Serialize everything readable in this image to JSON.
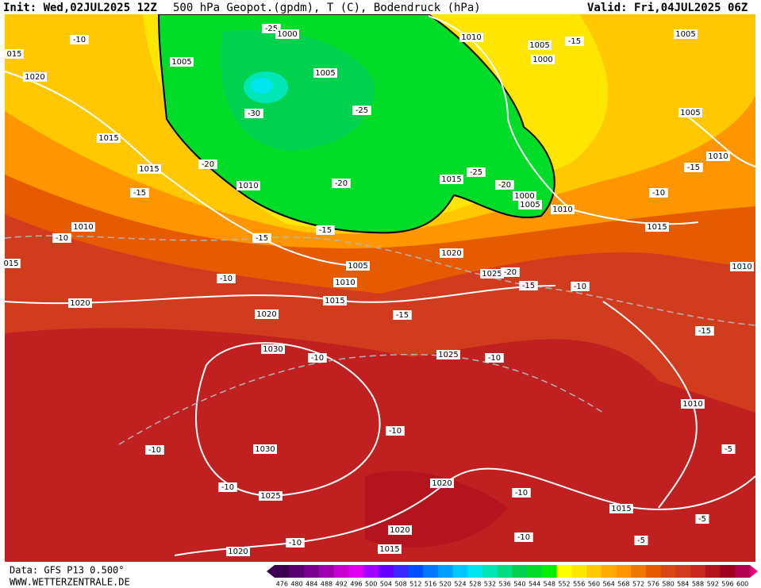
{
  "header": {
    "init": "Init: Wed,02JUL2025 12Z",
    "title": "500 hPa Geopot.(gpdm), T (C), Bodendruck (hPa)",
    "valid": "Valid: Fri,04JUL2025 06Z"
  },
  "footer": {
    "source": "Data: GFS P13 0.500°",
    "site": "WWW.WETTERZENTRALE.DE"
  },
  "legend": {
    "ticks": [
      476,
      480,
      484,
      488,
      492,
      496,
      500,
      504,
      508,
      512,
      516,
      520,
      524,
      528,
      532,
      536,
      540,
      544,
      548,
      552,
      556,
      560,
      564,
      568,
      572,
      576,
      580,
      584,
      588,
      592,
      596,
      600
    ],
    "colors": [
      "#3c0050",
      "#5a0070",
      "#7a0090",
      "#a000b0",
      "#c800d0",
      "#e000f0",
      "#a000ff",
      "#6400ff",
      "#3c28ff",
      "#0050ff",
      "#0078ff",
      "#00a0ff",
      "#00c8ff",
      "#00e6f0",
      "#00e6b4",
      "#00dc82",
      "#00d250",
      "#00dc28",
      "#00f000",
      "#ffff00",
      "#ffe600",
      "#ffc800",
      "#ffaa00",
      "#ff9600",
      "#f07800",
      "#e65a00",
      "#dc4614",
      "#d23c1e",
      "#c8281e",
      "#b4141e",
      "#a0001e",
      "#b40050"
    ]
  },
  "map_labels": [
    "-25",
    "1000",
    "1010",
    "1005",
    "-15",
    "1005",
    "-10",
    "015",
    "1000",
    "1020",
    "1005",
    "1005",
    "-30",
    "-25",
    "1005",
    "1015",
    "-20",
    "1015",
    "-25",
    "-20",
    "1015",
    "1010",
    "-20",
    "1010",
    "-15",
    "-15",
    "-10",
    "1000",
    "1005",
    "1010",
    "1010",
    "-15",
    "1015",
    "-10",
    "-15",
    "1020",
    "015",
    "1005",
    "1010",
    "1025",
    "-20",
    "-10",
    "1010",
    "-15",
    "-10",
    "1015",
    "1020",
    "1020",
    "-15",
    "-15",
    "1030",
    "1025",
    "-10",
    "-10",
    "1010",
    "-10",
    "1030",
    "-10",
    "-5",
    "-10",
    "1020",
    "-10",
    "1025",
    "1015",
    "-5",
    "1020",
    "-10",
    "-5",
    "-10",
    "1020",
    "1015"
  ]
}
